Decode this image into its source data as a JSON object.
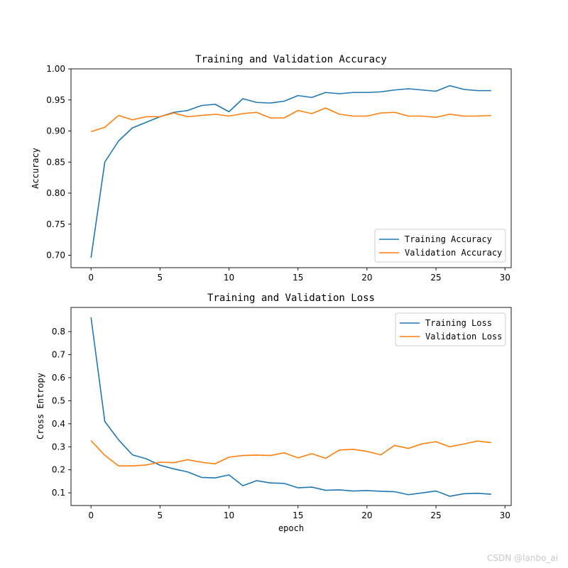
{
  "chart_data": [
    {
      "type": "line",
      "title": "Training and Validation Accuracy",
      "xlabel": "",
      "ylabel": "Accuracy",
      "xlim": [
        -1.45,
        30.45
      ],
      "ylim": [
        0.68,
        1.0
      ],
      "xticks": [
        0,
        5,
        10,
        15,
        20,
        25,
        30
      ],
      "yticks": [
        0.7,
        0.75,
        0.8,
        0.85,
        0.9,
        0.95,
        1.0
      ],
      "ytick_decimals": 2,
      "legend_position": "lower-right",
      "x": [
        0,
        1,
        2,
        3,
        4,
        5,
        6,
        7,
        8,
        9,
        10,
        11,
        12,
        13,
        14,
        15,
        16,
        17,
        18,
        19,
        20,
        21,
        22,
        23,
        24,
        25,
        26,
        27,
        28,
        29
      ],
      "series": [
        {
          "name": "Training Accuracy",
          "color": "#1f77b4",
          "values": [
            0.696,
            0.85,
            0.884,
            0.905,
            0.914,
            0.923,
            0.93,
            0.933,
            0.941,
            0.943,
            0.931,
            0.952,
            0.946,
            0.945,
            0.948,
            0.957,
            0.954,
            0.962,
            0.96,
            0.962,
            0.962,
            0.963,
            0.966,
            0.968,
            0.966,
            0.964,
            0.973,
            0.967,
            0.965,
            0.965
          ]
        },
        {
          "name": "Validation Accuracy",
          "color": "#ff7f0e",
          "values": [
            0.899,
            0.906,
            0.925,
            0.918,
            0.923,
            0.923,
            0.929,
            0.923,
            0.925,
            0.927,
            0.924,
            0.928,
            0.93,
            0.921,
            0.921,
            0.933,
            0.928,
            0.937,
            0.927,
            0.924,
            0.924,
            0.929,
            0.93,
            0.924,
            0.924,
            0.922,
            0.927,
            0.924,
            0.924,
            0.925
          ]
        }
      ]
    },
    {
      "type": "line",
      "title": "Training and Validation Loss",
      "xlabel": "epoch",
      "ylabel": "Cross Entropy",
      "xlim": [
        -1.45,
        30.45
      ],
      "ylim": [
        0.045,
        0.905
      ],
      "xticks": [
        0,
        5,
        10,
        15,
        20,
        25,
        30
      ],
      "yticks": [
        0.1,
        0.2,
        0.3,
        0.4,
        0.5,
        0.6,
        0.7,
        0.8
      ],
      "ytick_decimals": 1,
      "legend_position": "upper-right",
      "x": [
        0,
        1,
        2,
        3,
        4,
        5,
        6,
        7,
        8,
        9,
        10,
        11,
        12,
        13,
        14,
        15,
        16,
        17,
        18,
        19,
        20,
        21,
        22,
        23,
        24,
        25,
        26,
        27,
        28,
        29
      ],
      "series": [
        {
          "name": "Training Loss",
          "color": "#1f77b4",
          "values": [
            0.862,
            0.41,
            0.33,
            0.265,
            0.248,
            0.22,
            0.204,
            0.191,
            0.167,
            0.165,
            0.178,
            0.131,
            0.153,
            0.143,
            0.141,
            0.122,
            0.125,
            0.111,
            0.113,
            0.108,
            0.11,
            0.107,
            0.105,
            0.092,
            0.1,
            0.108,
            0.085,
            0.096,
            0.098,
            0.094
          ]
        },
        {
          "name": "Validation Loss",
          "color": "#ff7f0e",
          "values": [
            0.327,
            0.263,
            0.217,
            0.217,
            0.221,
            0.233,
            0.231,
            0.244,
            0.233,
            0.226,
            0.255,
            0.262,
            0.264,
            0.262,
            0.274,
            0.252,
            0.27,
            0.25,
            0.286,
            0.289,
            0.28,
            0.265,
            0.306,
            0.293,
            0.313,
            0.322,
            0.3,
            0.312,
            0.325,
            0.318
          ]
        }
      ]
    }
  ],
  "watermark": "CSDN @lanbo_ai"
}
